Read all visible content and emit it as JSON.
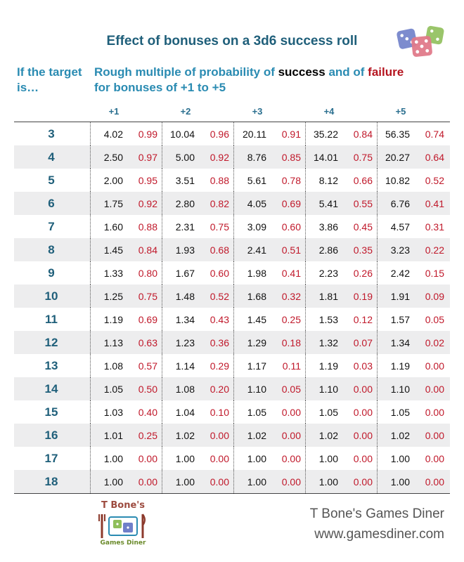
{
  "title": "Effect of bonuses on a 3d6 success roll",
  "row_header": "If the target is…",
  "subtitle": {
    "part1": "Rough multiple of probability of ",
    "success_word": "success",
    "part2": " and of ",
    "failure_word": "failure",
    "part3": " for bonuses of +1 to +5"
  },
  "chart_data": {
    "type": "table",
    "title": "Effect of bonuses on a 3d6 success roll",
    "columns": [
      "+1",
      "+2",
      "+3",
      "+4",
      "+5"
    ],
    "rows": [
      {
        "target": "3",
        "success": [
          "4.02",
          "10.04",
          "20.11",
          "35.22",
          "56.35"
        ],
        "failure": [
          "0.99",
          "0.96",
          "0.91",
          "0.84",
          "0.74"
        ]
      },
      {
        "target": "4",
        "success": [
          "2.50",
          "5.00",
          "8.76",
          "14.01",
          "20.27"
        ],
        "failure": [
          "0.97",
          "0.92",
          "0.85",
          "0.75",
          "0.64"
        ]
      },
      {
        "target": "5",
        "success": [
          "2.00",
          "3.51",
          "5.61",
          "8.12",
          "10.82"
        ],
        "failure": [
          "0.95",
          "0.88",
          "0.78",
          "0.66",
          "0.52"
        ]
      },
      {
        "target": "6",
        "success": [
          "1.75",
          "2.80",
          "4.05",
          "5.41",
          "6.76"
        ],
        "failure": [
          "0.92",
          "0.82",
          "0.69",
          "0.55",
          "0.41"
        ]
      },
      {
        "target": "7",
        "success": [
          "1.60",
          "2.31",
          "3.09",
          "3.86",
          "4.57"
        ],
        "failure": [
          "0.88",
          "0.75",
          "0.60",
          "0.45",
          "0.31"
        ]
      },
      {
        "target": "8",
        "success": [
          "1.45",
          "1.93",
          "2.41",
          "2.86",
          "3.23"
        ],
        "failure": [
          "0.84",
          "0.68",
          "0.51",
          "0.35",
          "0.22"
        ]
      },
      {
        "target": "9",
        "success": [
          "1.33",
          "1.67",
          "1.98",
          "2.23",
          "2.42"
        ],
        "failure": [
          "0.80",
          "0.60",
          "0.41",
          "0.26",
          "0.15"
        ]
      },
      {
        "target": "10",
        "success": [
          "1.25",
          "1.48",
          "1.68",
          "1.81",
          "1.91"
        ],
        "failure": [
          "0.75",
          "0.52",
          "0.32",
          "0.19",
          "0.09"
        ]
      },
      {
        "target": "11",
        "success": [
          "1.19",
          "1.34",
          "1.45",
          "1.53",
          "1.57"
        ],
        "failure": [
          "0.69",
          "0.43",
          "0.25",
          "0.12",
          "0.05"
        ]
      },
      {
        "target": "12",
        "success": [
          "1.13",
          "1.23",
          "1.29",
          "1.32",
          "1.34"
        ],
        "failure": [
          "0.63",
          "0.36",
          "0.18",
          "0.07",
          "0.02"
        ]
      },
      {
        "target": "13",
        "success": [
          "1.08",
          "1.14",
          "1.17",
          "1.19",
          "1.19"
        ],
        "failure": [
          "0.57",
          "0.29",
          "0.11",
          "0.03",
          "0.00"
        ]
      },
      {
        "target": "14",
        "success": [
          "1.05",
          "1.08",
          "1.10",
          "1.10",
          "1.10"
        ],
        "failure": [
          "0.50",
          "0.20",
          "0.05",
          "0.00",
          "0.00"
        ]
      },
      {
        "target": "15",
        "success": [
          "1.03",
          "1.04",
          "1.05",
          "1.05",
          "1.05"
        ],
        "failure": [
          "0.40",
          "0.10",
          "0.00",
          "0.00",
          "0.00"
        ]
      },
      {
        "target": "16",
        "success": [
          "1.01",
          "1.02",
          "1.02",
          "1.02",
          "1.02"
        ],
        "failure": [
          "0.25",
          "0.00",
          "0.00",
          "0.00",
          "0.00"
        ]
      },
      {
        "target": "17",
        "success": [
          "1.00",
          "1.00",
          "1.00",
          "1.00",
          "1.00"
        ],
        "failure": [
          "0.00",
          "0.00",
          "0.00",
          "0.00",
          "0.00"
        ]
      },
      {
        "target": "18",
        "success": [
          "1.00",
          "1.00",
          "1.00",
          "1.00",
          "1.00"
        ],
        "failure": [
          "0.00",
          "0.00",
          "0.00",
          "0.00",
          "0.00"
        ]
      }
    ]
  },
  "colors": {
    "title": "#1f5f7a",
    "header": "#2a8bb2",
    "success": "#000000",
    "failure": "#c0182a",
    "shade": "#ededee"
  },
  "logo": {
    "top": "T Bone's",
    "bottom": "Games Diner"
  },
  "footer": {
    "name": "T Bone's Games Diner",
    "url": "www.gamesdiner.com"
  }
}
